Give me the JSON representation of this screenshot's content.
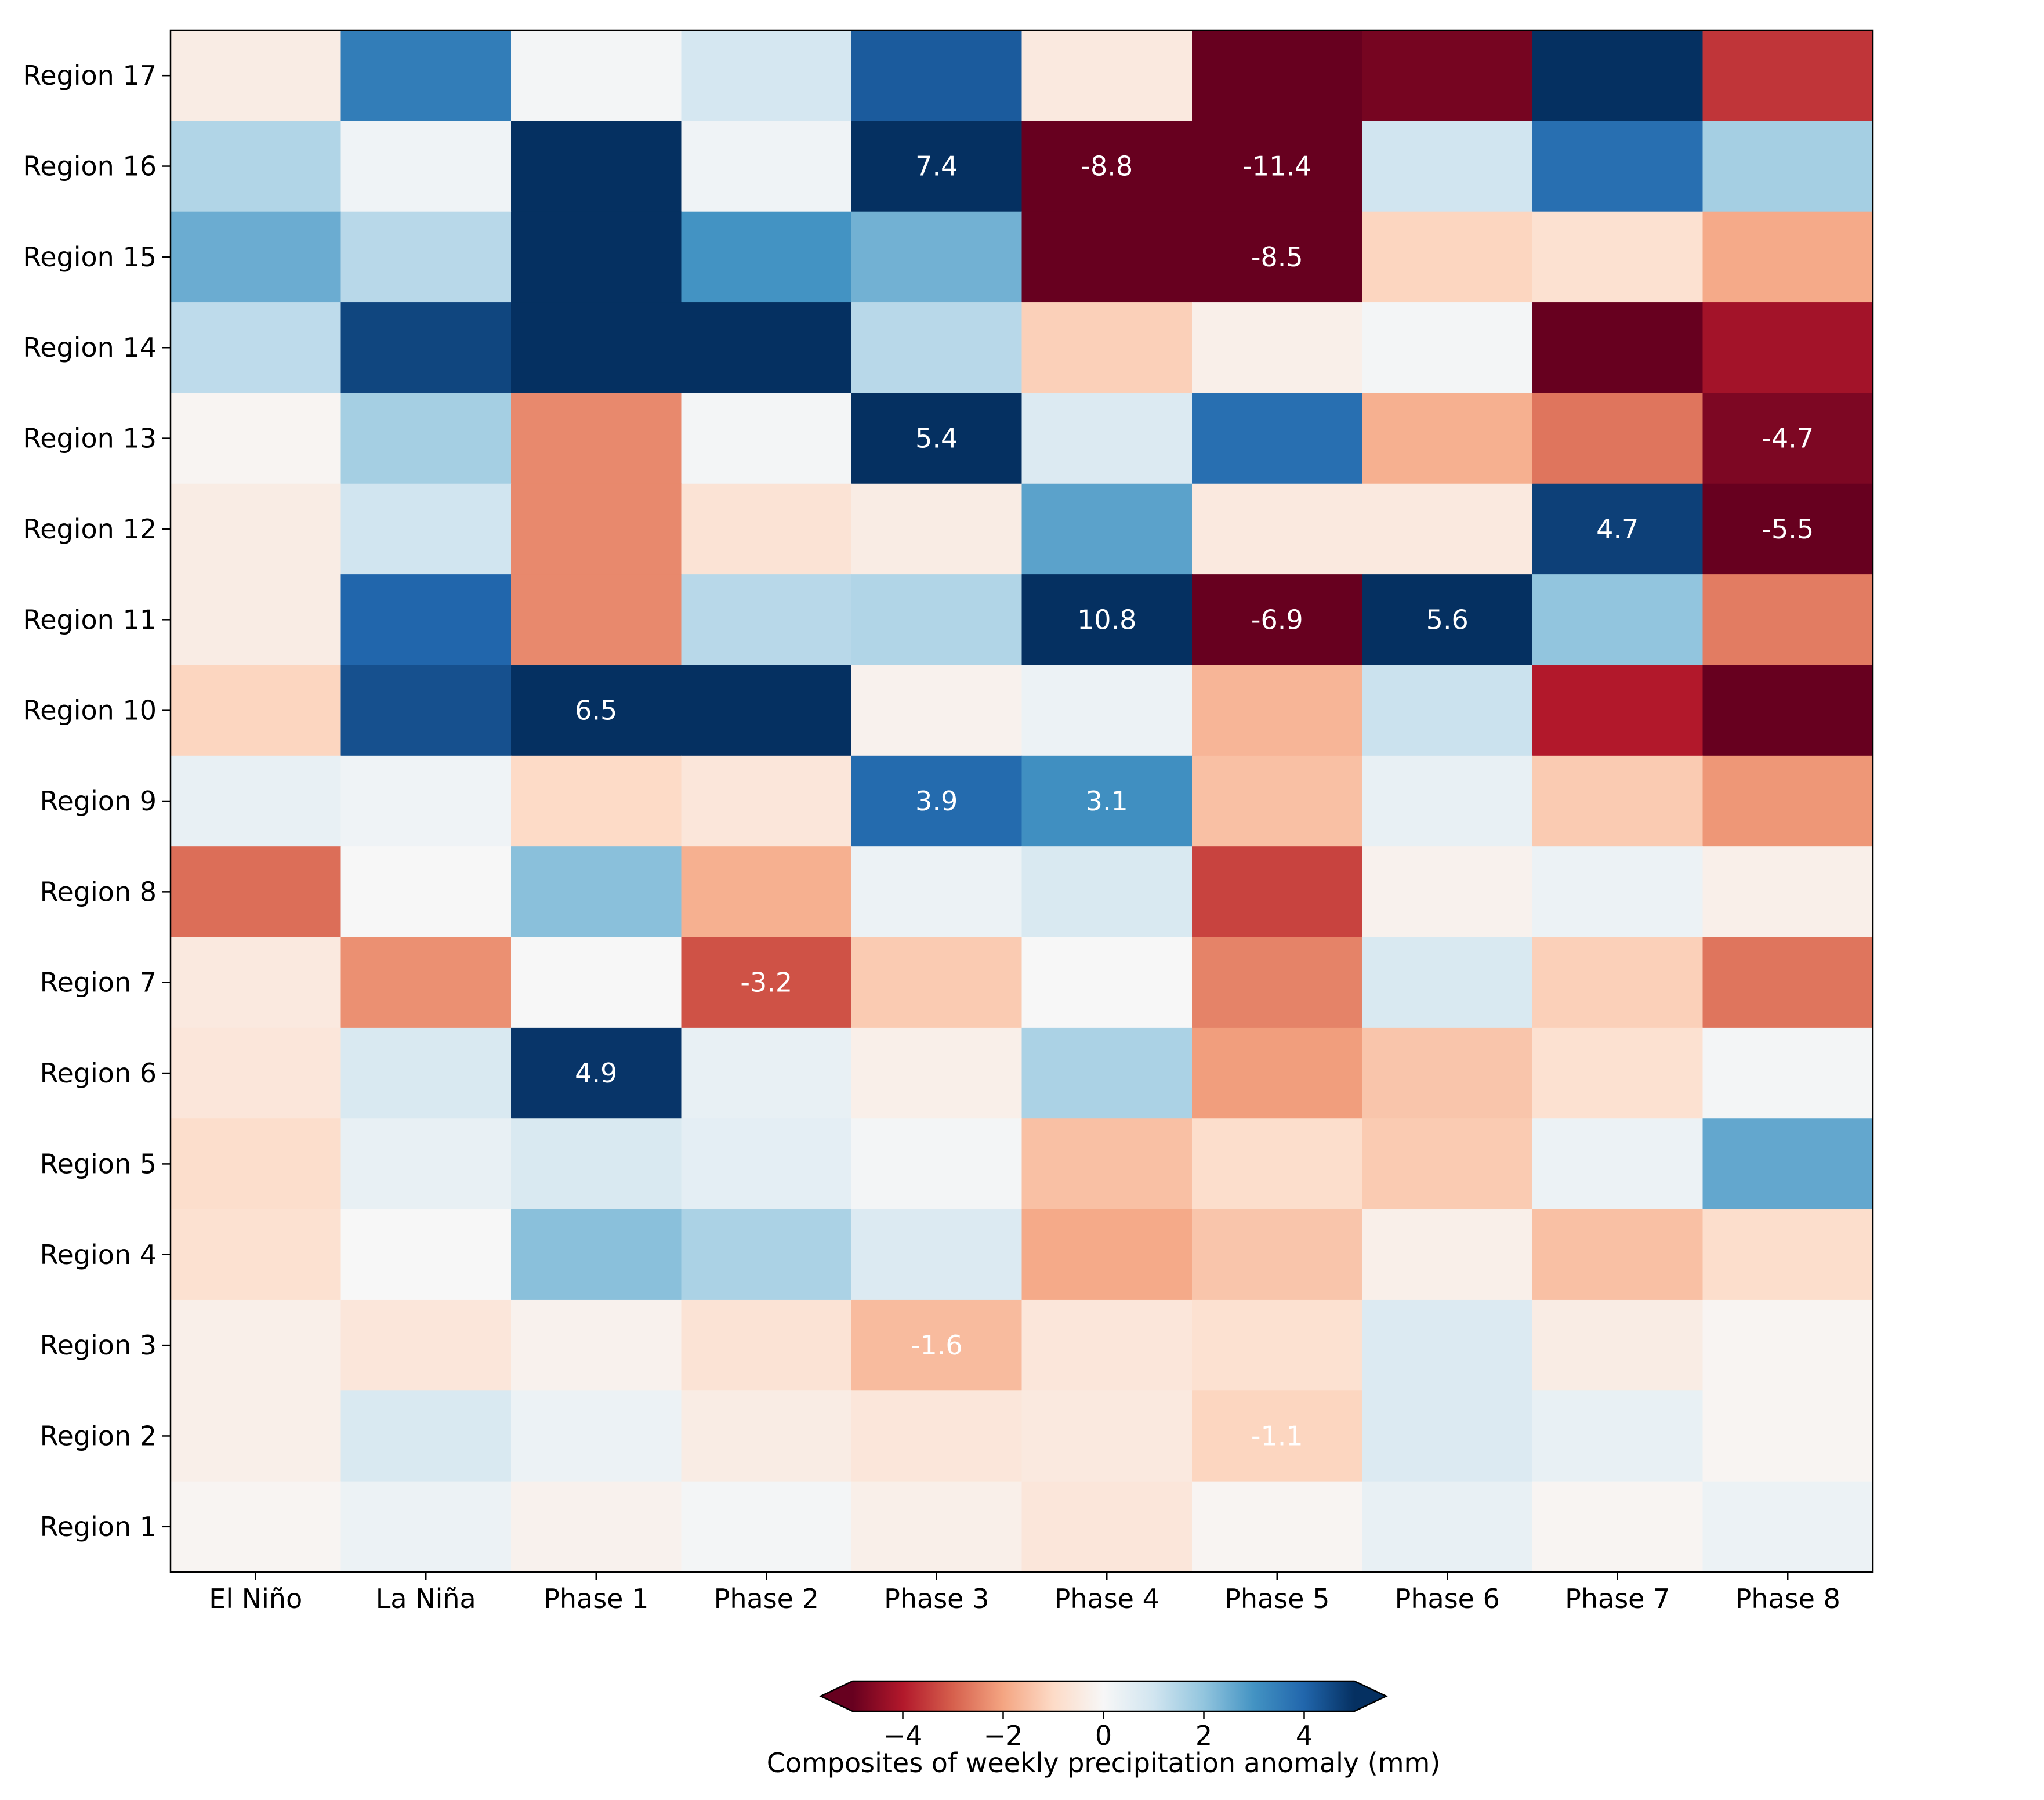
{
  "chart_data": {
    "type": "heatmap",
    "title": "",
    "xlabel": "",
    "ylabel": "",
    "columns": [
      "El Niño",
      "La Niña",
      "Phase 1",
      "Phase 2",
      "Phase 3",
      "Phase 4",
      "Phase 5",
      "Phase 6",
      "Phase 7",
      "Phase 8"
    ],
    "rows": [
      "Region 17",
      "Region 16",
      "Region 15",
      "Region 14",
      "Region 13",
      "Region 12",
      "Region 11",
      "Region 10",
      "Region 9",
      "Region 8",
      "Region 7",
      "Region 6",
      "Region 5",
      "Region 4",
      "Region 3",
      "Region 2",
      "Region 1"
    ],
    "values": [
      [
        -0.4,
        3.5,
        0.1,
        0.9,
        4.2,
        -0.5,
        -6.0,
        -4.8,
        5.6,
        -3.6
      ],
      [
        1.5,
        0.2,
        6.2,
        0.2,
        7.4,
        -8.8,
        -11.4,
        1.0,
        3.8,
        1.7
      ],
      [
        2.5,
        1.4,
        5.0,
        3.0,
        2.4,
        -5.2,
        -8.5,
        -1.1,
        -0.8,
        -1.9
      ],
      [
        1.3,
        4.6,
        6.0,
        6.0,
        1.4,
        -1.2,
        -0.3,
        0.1,
        -6.0,
        -4.2
      ],
      [
        -0.1,
        1.7,
        -2.4,
        0.1,
        5.4,
        0.7,
        3.8,
        -1.8,
        -2.7,
        -4.7
      ],
      [
        -0.4,
        1.0,
        -2.4,
        -0.7,
        -0.4,
        2.7,
        -0.5,
        -0.5,
        4.7,
        -5.5
      ],
      [
        -0.4,
        4.0,
        -2.4,
        1.4,
        1.5,
        10.8,
        -6.9,
        5.6,
        2.0,
        -2.6
      ],
      [
        -1.1,
        4.4,
        6.5,
        5.0,
        -0.2,
        0.3,
        -1.7,
        1.1,
        -4.0,
        -6.0
      ],
      [
        0.4,
        0.2,
        -1.0,
        -0.6,
        3.9,
        3.1,
        -1.5,
        0.4,
        -1.3,
        -2.2
      ],
      [
        -2.8,
        0.0,
        2.1,
        -1.8,
        0.3,
        0.8,
        -3.4,
        -0.2,
        0.3,
        -0.3
      ],
      [
        -0.5,
        -2.3,
        0.0,
        -3.2,
        -1.3,
        0.0,
        -2.5,
        0.8,
        -1.2,
        -2.7
      ],
      [
        -0.6,
        0.8,
        4.9,
        0.4,
        -0.3,
        1.6,
        -2.1,
        -1.4,
        -0.8,
        0.1
      ],
      [
        -0.9,
        0.4,
        0.8,
        0.5,
        0.1,
        -1.5,
        -0.9,
        -1.3,
        0.3,
        2.6
      ],
      [
        -0.8,
        0.0,
        2.1,
        1.6,
        0.7,
        -1.9,
        -1.4,
        -0.3,
        -1.5,
        -0.9
      ],
      [
        -0.3,
        -0.6,
        -0.2,
        -0.7,
        -1.6,
        -0.6,
        -0.8,
        0.7,
        -0.4,
        -0.1
      ],
      [
        -0.3,
        0.8,
        0.3,
        -0.4,
        -0.6,
        -0.5,
        -1.1,
        0.7,
        0.4,
        -0.1
      ],
      [
        -0.1,
        0.3,
        -0.2,
        0.1,
        -0.3,
        -0.6,
        -0.1,
        0.4,
        -0.1,
        0.3
      ]
    ],
    "annotations": [
      {
        "row": "Region 16",
        "col": "Phase 3",
        "text": "7.4"
      },
      {
        "row": "Region 16",
        "col": "Phase 4",
        "text": "-8.8"
      },
      {
        "row": "Region 16",
        "col": "Phase 5",
        "text": "-11.4"
      },
      {
        "row": "Region 15",
        "col": "Phase 5",
        "text": "-8.5"
      },
      {
        "row": "Region 13",
        "col": "Phase 3",
        "text": "5.4"
      },
      {
        "row": "Region 13",
        "col": "Phase 8",
        "text": "-4.7"
      },
      {
        "row": "Region 12",
        "col": "Phase 7",
        "text": "4.7"
      },
      {
        "row": "Region 12",
        "col": "Phase 8",
        "text": "-5.5"
      },
      {
        "row": "Region 11",
        "col": "Phase 4",
        "text": "10.8"
      },
      {
        "row": "Region 11",
        "col": "Phase 5",
        "text": "-6.9"
      },
      {
        "row": "Region 11",
        "col": "Phase 6",
        "text": "5.6"
      },
      {
        "row": "Region 10",
        "col": "Phase 1",
        "text": "6.5"
      },
      {
        "row": "Region 9",
        "col": "Phase 3",
        "text": "3.9"
      },
      {
        "row": "Region 9",
        "col": "Phase 4",
        "text": "3.1"
      },
      {
        "row": "Region 7",
        "col": "Phase 2",
        "text": "-3.2"
      },
      {
        "row": "Region 6",
        "col": "Phase 1",
        "text": "4.9"
      },
      {
        "row": "Region 3",
        "col": "Phase 3",
        "text": "-1.6"
      },
      {
        "row": "Region 2",
        "col": "Phase 5",
        "text": "-1.1"
      }
    ],
    "colormap": "RdBu",
    "color_range": [
      -5,
      5
    ],
    "colorbar": {
      "label": "Composites of weekly precipitation anomaly (mm)",
      "ticks": [
        -4,
        -2,
        0,
        2,
        4
      ],
      "tick_labels": [
        "−4",
        "−2",
        "0",
        "2",
        "4"
      ],
      "extend": "both"
    }
  }
}
